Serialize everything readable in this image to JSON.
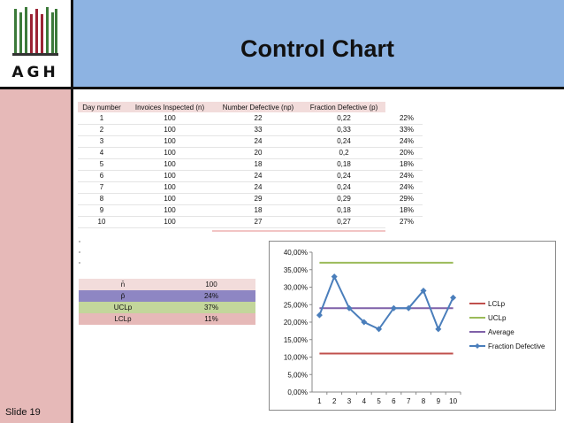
{
  "slide": {
    "title": "Control Chart",
    "number": "Slide 19",
    "logo_text": "AGH"
  },
  "table": {
    "headers": [
      "Day number",
      "Invoices Inspected (n)",
      "Number Defective (np)",
      "Fraction Defective (p)",
      ""
    ],
    "rows": [
      [
        "1",
        "100",
        "22",
        "0,22",
        "22%"
      ],
      [
        "2",
        "100",
        "33",
        "0,33",
        "33%"
      ],
      [
        "3",
        "100",
        "24",
        "0,24",
        "24%"
      ],
      [
        "4",
        "100",
        "20",
        "0,2",
        "20%"
      ],
      [
        "5",
        "100",
        "18",
        "0,18",
        "18%"
      ],
      [
        "6",
        "100",
        "24",
        "0,24",
        "24%"
      ],
      [
        "7",
        "100",
        "24",
        "0,24",
        "24%"
      ],
      [
        "8",
        "100",
        "29",
        "0,29",
        "29%"
      ],
      [
        "9",
        "100",
        "18",
        "0,18",
        "18%"
      ],
      [
        "10",
        "100",
        "27",
        "0,27",
        "27%"
      ]
    ]
  },
  "stats": [
    {
      "label": "n̄",
      "value": "100",
      "color": "#f2dcdb"
    },
    {
      "label": "p̄",
      "value": "24%",
      "color": "#8e86c3"
    },
    {
      "label": "UCLp",
      "value": "37%",
      "color": "#c3d69b"
    },
    {
      "label": "LCLp",
      "value": "11%",
      "color": "#e6b9b8"
    }
  ],
  "colors": {
    "header": "#8db3e2",
    "sidebar": "#e6b9b8",
    "logo_green": "#3c7a3a",
    "logo_red": "#9b2335"
  },
  "chart_data": {
    "type": "line",
    "categories": [
      "1",
      "2",
      "3",
      "4",
      "5",
      "6",
      "7",
      "8",
      "9",
      "10"
    ],
    "y_ticks": [
      "0,00%",
      "5,00%",
      "10,00%",
      "15,00%",
      "20,00%",
      "25,00%",
      "30,00%",
      "35,00%",
      "40,00%"
    ],
    "ylim": [
      0,
      0.4
    ],
    "series": [
      {
        "name": "LCLp",
        "values": [
          0.11,
          0.11,
          0.11,
          0.11,
          0.11,
          0.11,
          0.11,
          0.11,
          0.11,
          0.11
        ],
        "color": "#c0504d",
        "marker": false
      },
      {
        "name": "UCLp",
        "values": [
          0.37,
          0.37,
          0.37,
          0.37,
          0.37,
          0.37,
          0.37,
          0.37,
          0.37,
          0.37
        ],
        "color": "#9bbb59",
        "marker": false
      },
      {
        "name": "Average",
        "values": [
          0.24,
          0.24,
          0.24,
          0.24,
          0.24,
          0.24,
          0.24,
          0.24,
          0.24,
          0.24
        ],
        "color": "#7f60a8",
        "marker": false
      },
      {
        "name": "Fraction Defective",
        "values": [
          0.22,
          0.33,
          0.24,
          0.2,
          0.18,
          0.24,
          0.24,
          0.29,
          0.18,
          0.27
        ],
        "color": "#4a7ebb",
        "marker": true
      }
    ],
    "legend_position": "right",
    "grid": false
  }
}
